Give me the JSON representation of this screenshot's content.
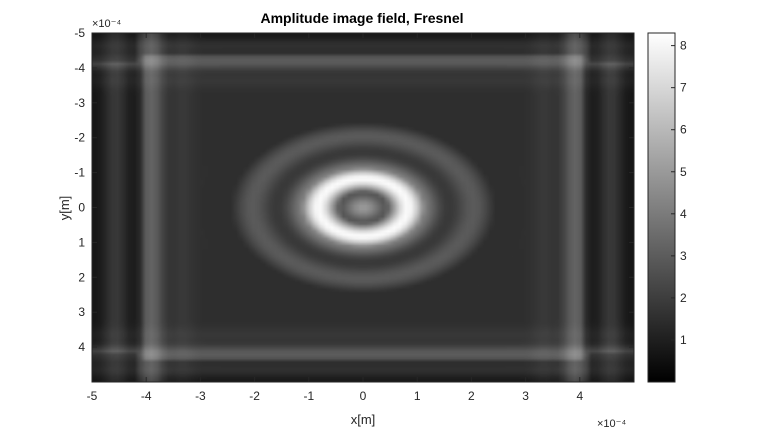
{
  "chart_data": {
    "type": "heatmap",
    "title": "Amplitude image field, Fresnel",
    "xlabel": "x[m]",
    "ylabel": "y[m]",
    "x_exponent_label": "×10⁻⁴",
    "y_exponent_label": "×10⁻⁴",
    "xlim": [
      -5,
      5
    ],
    "ylim": [
      -5,
      5
    ],
    "y_reversed": true,
    "xticks": [
      "-5",
      "-4",
      "-3",
      "-2",
      "-1",
      "0",
      "1",
      "2",
      "3",
      "4"
    ],
    "xtick_values": [
      -5,
      -4,
      -3,
      -2,
      -1,
      0,
      1,
      2,
      3,
      4
    ],
    "yticks": [
      "-5",
      "-4",
      "-3",
      "-2",
      "-1",
      "0",
      "1",
      "2",
      "3",
      "4"
    ],
    "ytick_values": [
      -5,
      -4,
      -3,
      -2,
      -1,
      0,
      1,
      2,
      3,
      4
    ],
    "colormap": "gray",
    "clim": [
      0,
      8.3
    ],
    "colorbar_ticks": [
      "1",
      "2",
      "3",
      "4",
      "5",
      "6",
      "7",
      "8"
    ],
    "colorbar_tick_values": [
      1,
      2,
      3,
      4,
      5,
      6,
      7,
      8
    ],
    "field_description": {
      "center_value": 4.0,
      "peak_ring_value": 8.2,
      "peak_ring_radius_x": 1.5,
      "peak_ring_radius_y": 1.5,
      "background_value": 1.5,
      "aperture_edge_x": 3.5,
      "aperture_edge_y": 3.8
    }
  }
}
